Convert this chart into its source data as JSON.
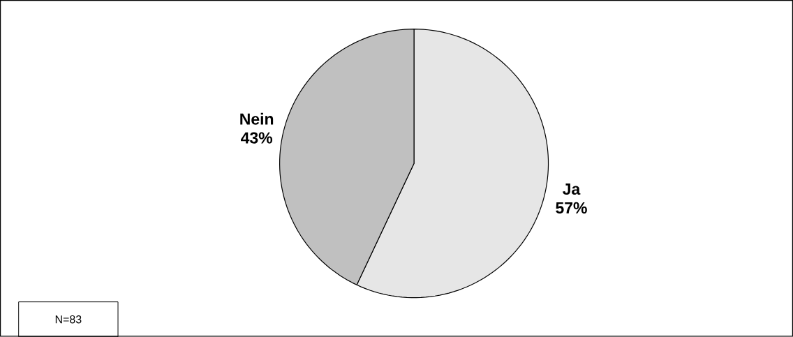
{
  "chart_data": {
    "type": "pie",
    "categories": [
      "Ja",
      "Nein"
    ],
    "values": [
      57,
      43
    ],
    "colors": [
      "#e6e6e6",
      "#c0c0c0"
    ],
    "value_labels": [
      "57%",
      "43%"
    ],
    "annotations": [
      "N=83"
    ]
  }
}
